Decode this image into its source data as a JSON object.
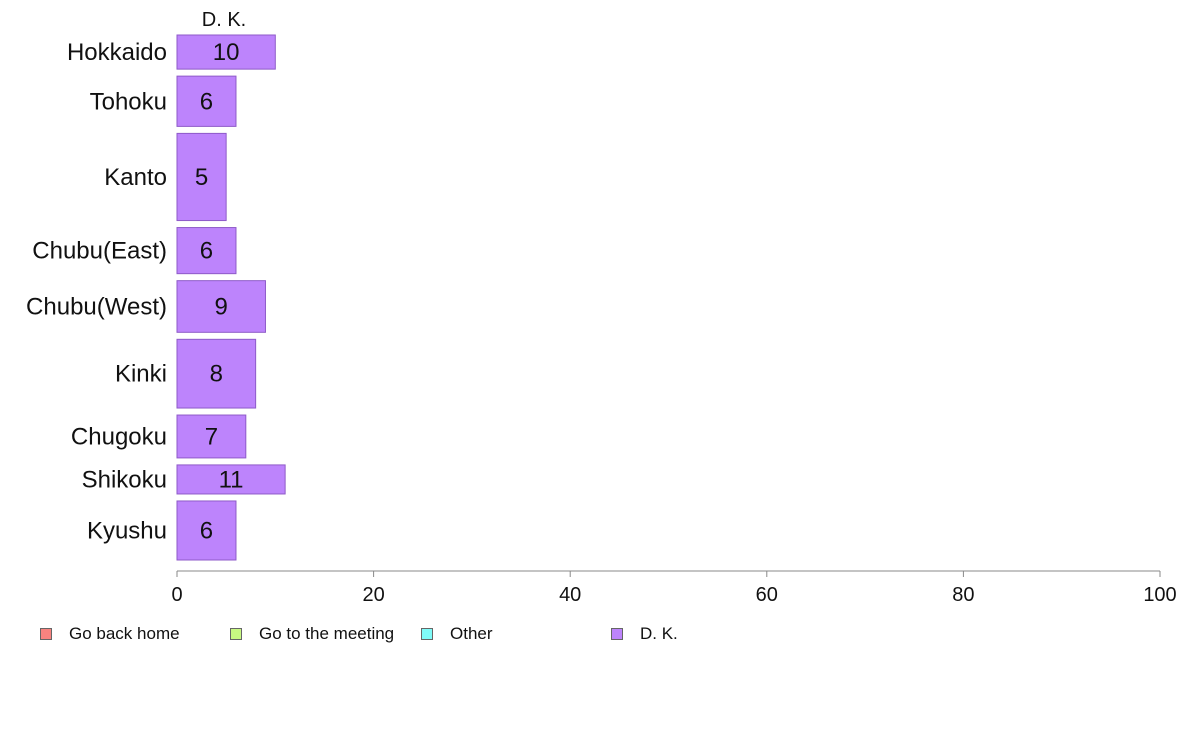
{
  "chart_data": {
    "type": "bar",
    "orientation": "horizontal",
    "stacked": true,
    "title": "",
    "column_header": "D. K.",
    "xlabel": "",
    "ylabel": "",
    "xlim": [
      0,
      100
    ],
    "x_ticks": [
      0,
      20,
      40,
      60,
      80,
      100
    ],
    "grid": false,
    "legend_position": "bottom",
    "categories": [
      "Hokkaido",
      "Tohoku",
      "Kanto",
      "Chubu(East)",
      "Chubu(West)",
      "Kinki",
      "Chugoku",
      "Shikoku",
      "Kyushu"
    ],
    "category_weights": [
      0.74,
      1.09,
      1.89,
      1.0,
      1.12,
      1.49,
      0.93,
      0.63,
      1.28
    ],
    "series": [
      {
        "name": "Go back home",
        "color": "#f8837f",
        "values": [
          0,
          0,
          0,
          0,
          0,
          0,
          0,
          0,
          0
        ]
      },
      {
        "name": "Go to the meeting",
        "color": "#c8f982",
        "values": [
          0,
          0,
          0,
          0,
          0,
          0,
          0,
          0,
          0
        ]
      },
      {
        "name": "Other",
        "color": "#7ffbf8",
        "values": [
          0,
          0,
          0,
          0,
          0,
          0,
          0,
          0,
          0
        ]
      },
      {
        "name": "D. K.",
        "color": "#bd84fc",
        "values": [
          10,
          6,
          5,
          6,
          9,
          8,
          7,
          11,
          6
        ]
      }
    ],
    "data_labels": [
      "10",
      "6",
      "5",
      "6",
      "9",
      "8",
      "7",
      "11",
      "6"
    ]
  }
}
